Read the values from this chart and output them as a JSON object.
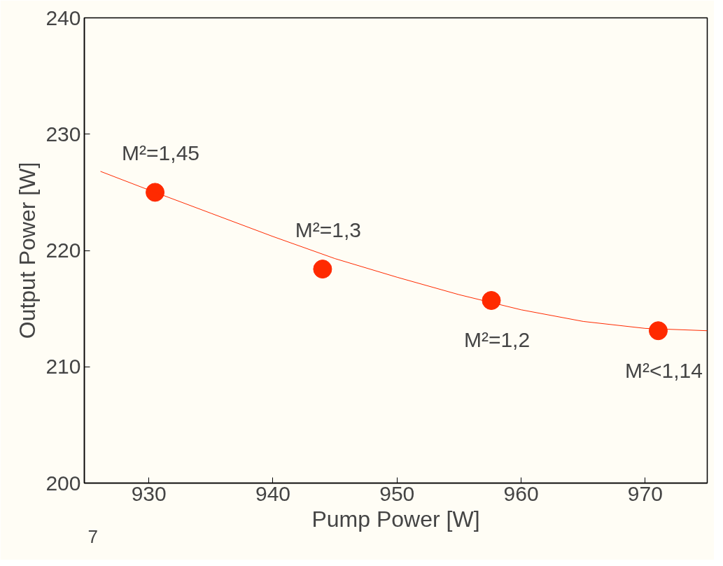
{
  "chart_data": {
    "type": "scatter",
    "xlabel": "Pump Power [W]",
    "ylabel": "Output Power [W]",
    "xlim": [
      924.8,
      975
    ],
    "ylim": [
      200,
      240
    ],
    "xticks": [
      930,
      940,
      950,
      960,
      970
    ],
    "yticks": [
      200,
      210,
      220,
      230,
      240
    ],
    "grid": false,
    "marker": "circle",
    "series": [
      {
        "color": "#ff2a00",
        "x": [
          930.5,
          944,
          957.6,
          971.05
        ],
        "values": [
          225,
          218.4,
          215.7,
          213.1
        ]
      },
      {
        "type": "line",
        "color": "#ff2a00",
        "marker": "none",
        "line_style": "solid",
        "x": [
          926.1,
          930,
          935,
          940,
          945,
          950,
          955,
          960,
          965,
          970,
          975
        ],
        "values": [
          226.8,
          225.2,
          223.2,
          221.2,
          219.3,
          217.7,
          216.2,
          214.9,
          213.9,
          213.3,
          213.1
        ]
      }
    ],
    "annotations": [
      {
        "text": "M²=1,45",
        "x": 930.5,
        "y": 225
      },
      {
        "text": "M²=1,3",
        "x": 944,
        "y": 218.4
      },
      {
        "text": "M²=1,2",
        "x": 957.6,
        "y": 215.7
      },
      {
        "text": "M²<1,14",
        "x": 971.05,
        "y": 213.1
      },
      "7"
    ]
  }
}
